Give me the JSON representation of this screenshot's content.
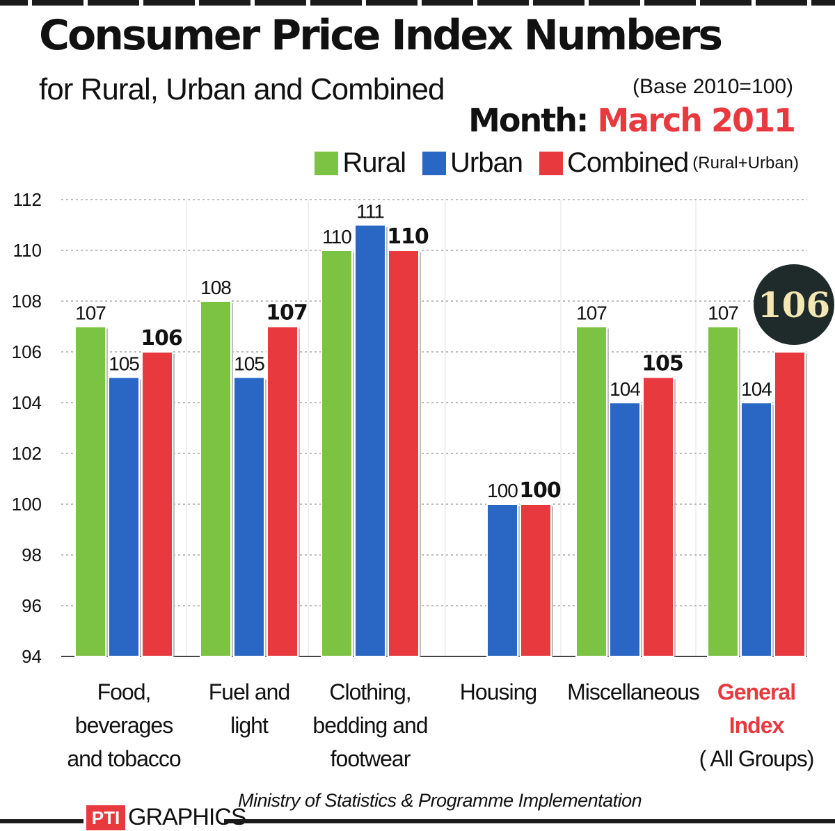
{
  "header": {
    "title": "Consumer Price Index Numbers",
    "subtitle": "for Rural, Urban and Combined",
    "base_note": "(Base 2010=100)",
    "month_label": "Month:",
    "month_value": "March 2011"
  },
  "legend": {
    "items": [
      {
        "label": "Rural",
        "color": "#7cc243"
      },
      {
        "label": "Urban",
        "color": "#2a67c4"
      },
      {
        "label": "Combined",
        "color": "#e8393f"
      }
    ],
    "combined_note": "(Rural+Urban)"
  },
  "chart_data": {
    "type": "bar",
    "title": "Consumer Price Index Numbers",
    "subtitle": "for Rural, Urban and Combined",
    "ylim": [
      94,
      112
    ],
    "yticks": [
      94,
      96,
      98,
      100,
      102,
      104,
      106,
      108,
      110,
      112
    ],
    "grid": true,
    "legend_position": "top-right",
    "categories": [
      [
        "Food,",
        "beverages",
        "and tobacco"
      ],
      [
        "Fuel and",
        "light"
      ],
      [
        "Clothing,",
        "bedding and",
        "footwear"
      ],
      [
        "Housing"
      ],
      [
        "Miscellaneous"
      ],
      [
        "General",
        "Index",
        "( All Groups)"
      ]
    ],
    "highlight_category_index": 5,
    "series": [
      {
        "name": "Rural",
        "color": "#7cc243",
        "values": [
          107,
          108,
          110,
          null,
          107,
          107
        ]
      },
      {
        "name": "Urban",
        "color": "#2a67c4",
        "values": [
          105,
          105,
          111,
          100,
          104,
          104
        ]
      },
      {
        "name": "Combined",
        "color": "#e8393f",
        "values": [
          106,
          107,
          110,
          100,
          105,
          106
        ]
      }
    ],
    "value_labels": [
      [
        "107",
        "105",
        "106"
      ],
      [
        "108",
        "105",
        "107"
      ],
      [
        "110",
        "111",
        "110"
      ],
      [
        "",
        "100",
        "100"
      ],
      [
        "107",
        "104",
        "105"
      ],
      [
        "107",
        "104",
        "106"
      ]
    ]
  },
  "colors": {
    "highlight_text": "#e8393f",
    "badge_bg": "#1f2a2a",
    "badge_text": "#f3e7b3",
    "grid": "#a7a7a7"
  },
  "footer": {
    "source": "Ministry of Statistics & Programme Implementation",
    "credit_logo": "PTI",
    "credit_text": "GRAPHICS"
  }
}
